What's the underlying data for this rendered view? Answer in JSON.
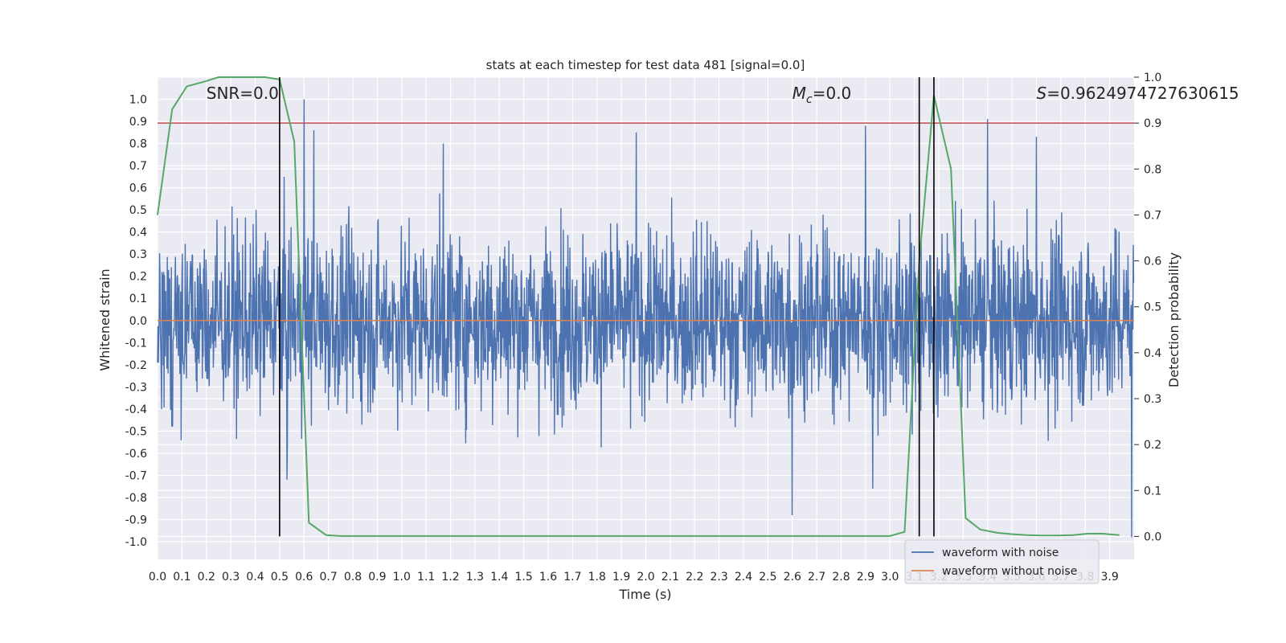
{
  "chart_data": {
    "type": "line",
    "title": "stats at each timestep for test data 481 [signal=0.0]",
    "xlabel": "Time (s)",
    "ylabel": "Whitened strain",
    "y2label": "Detection probability",
    "xlim": [
      0,
      4.0
    ],
    "ylim": [
      -1.08,
      1.1
    ],
    "y2lim": [
      -0.05,
      1.0
    ],
    "grid": true,
    "legend_position": "lower-right",
    "x_ticks": [
      0.0,
      0.1,
      0.2,
      0.3,
      0.4,
      0.5,
      0.6,
      0.7,
      0.8,
      0.9,
      1.0,
      1.1,
      1.2,
      1.3,
      1.4,
      1.5,
      1.6,
      1.7,
      1.8,
      1.9,
      2.0,
      2.1,
      2.2,
      2.3,
      2.4,
      2.5,
      2.6,
      2.7,
      2.8,
      2.9,
      3.0,
      3.1,
      3.2,
      3.3,
      3.4,
      3.5,
      3.6,
      3.7,
      3.8,
      3.9
    ],
    "y_ticks": [
      1.0,
      0.9,
      0.8,
      0.7,
      0.6,
      0.5,
      0.4,
      0.3,
      0.2,
      0.1,
      0.0,
      -0.1,
      -0.2,
      -0.3,
      -0.4,
      -0.5,
      -0.6,
      -0.7,
      -0.8,
      -0.9,
      -1.0
    ],
    "y2_ticks": [
      1.0,
      0.9,
      0.8,
      0.7,
      0.6,
      0.5,
      0.4,
      0.3,
      0.2,
      0.1,
      0.0
    ],
    "annotations": [
      {
        "text": "SNR=0.0",
        "x": 0.2
      },
      {
        "text_prefix": "M",
        "text_sub": "c",
        "text_suffix": "=0.0",
        "x": 2.6
      },
      {
        "text_prefix": "S",
        "text_suffix": "=0.9624974727630615",
        "x": 3.6
      }
    ],
    "threshold_y2": 0.9,
    "vertical_lines_x": [
      0.5,
      3.12,
      3.18
    ],
    "series": [
      {
        "name": "waveform with noise",
        "color": "#4c72b0",
        "noise_amplitude": 0.3,
        "y_range_visible": [
          -1.0,
          1.0
        ],
        "notable_peaks": [
          [
            0.5,
            0.35
          ],
          [
            0.6,
            1.0
          ],
          [
            0.64,
            0.86
          ],
          [
            1.17,
            0.8
          ],
          [
            1.96,
            0.85
          ],
          [
            2.9,
            0.88
          ],
          [
            3.4,
            0.91
          ],
          [
            3.6,
            0.83
          ],
          [
            0.53,
            -0.72
          ],
          [
            2.6,
            -0.88
          ],
          [
            2.93,
            -0.76
          ],
          [
            3.99,
            -0.98
          ]
        ]
      },
      {
        "name": "waveform without noise",
        "color": "#dd8452",
        "y_values_constant": 0.0
      },
      {
        "color": "#55a868",
        "axis": "y2",
        "x": [
          0.0,
          0.06,
          0.12,
          0.19,
          0.25,
          0.31,
          0.37,
          0.44,
          0.5,
          0.56,
          0.62,
          0.69,
          0.75,
          0.81,
          1.0,
          1.5,
          2.0,
          2.5,
          3.0,
          3.06,
          3.12,
          3.18,
          3.25,
          3.31,
          3.37,
          3.44,
          3.5,
          3.56,
          3.62,
          3.69,
          3.75,
          3.81,
          3.87,
          3.94
        ],
        "y": [
          0.7,
          0.93,
          0.98,
          0.99,
          1.0,
          1.0,
          1.0,
          1.0,
          0.995,
          0.86,
          0.03,
          0.003,
          0.001,
          0.001,
          0.001,
          0.001,
          0.001,
          0.001,
          0.001,
          0.01,
          0.6,
          0.96,
          0.8,
          0.04,
          0.015,
          0.008,
          0.005,
          0.003,
          0.002,
          0.002,
          0.003,
          0.006,
          0.006,
          0.003
        ]
      }
    ]
  }
}
